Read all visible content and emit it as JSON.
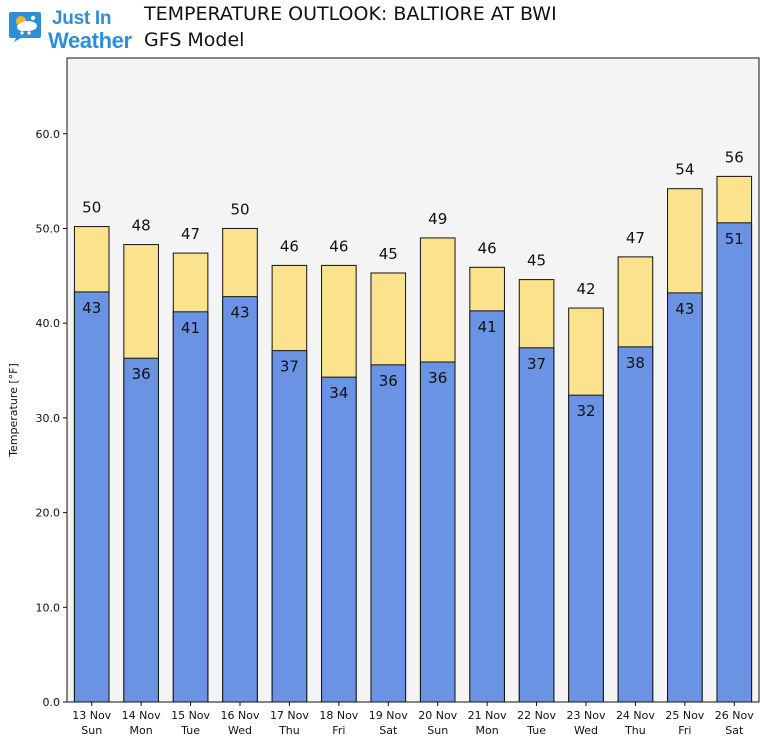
{
  "header": {
    "logo_line1": "Just In",
    "logo_line2": "Weather",
    "title": "TEMPERATURE OUTLOOK: BALTIORE AT BWI",
    "subtitle": "GFS Model"
  },
  "colors": {
    "high_bar": "#fbe38e",
    "low_bar": "#6b93e4",
    "plot_bg": "#f4f4f4",
    "logo_blue": "#2f8fd6"
  },
  "chart_data": {
    "type": "bar",
    "ylabel": "Temperature [°F]",
    "ylim": [
      0,
      68
    ],
    "yticks": [
      "0.0",
      "10.0",
      "20.0",
      "30.0",
      "40.0",
      "50.0",
      "60.0"
    ],
    "ytick_values": [
      0,
      10,
      20,
      30,
      40,
      50,
      60
    ],
    "grid": false,
    "categories": [
      [
        "13 Nov",
        "Sun"
      ],
      [
        "14 Nov",
        "Mon"
      ],
      [
        "15 Nov",
        "Tue"
      ],
      [
        "16 Nov",
        "Wed"
      ],
      [
        "17 Nov",
        "Thu"
      ],
      [
        "18 Nov",
        "Fri"
      ],
      [
        "19 Nov",
        "Sat"
      ],
      [
        "20 Nov",
        "Sun"
      ],
      [
        "21 Nov",
        "Mon"
      ],
      [
        "22 Nov",
        "Tue"
      ],
      [
        "23 Nov",
        "Wed"
      ],
      [
        "24 Nov",
        "Thu"
      ],
      [
        "25 Nov",
        "Fri"
      ],
      [
        "26 Nov",
        "Sat"
      ]
    ],
    "series": [
      {
        "values": [
          50.2,
          48.3,
          47.4,
          50.0,
          46.1,
          46.1,
          45.3,
          49.0,
          45.9,
          44.6,
          41.6,
          47.0,
          54.2,
          55.5
        ],
        "labels": [
          "50",
          "48",
          "47",
          "50",
          "46",
          "46",
          "45",
          "49",
          "46",
          "45",
          "42",
          "47",
          "54",
          "56"
        ]
      },
      {
        "values": [
          43.3,
          36.3,
          41.2,
          42.8,
          37.1,
          34.3,
          35.6,
          35.9,
          41.3,
          37.4,
          32.4,
          37.5,
          43.2,
          50.6
        ],
        "labels": [
          "43",
          "36",
          "41",
          "43",
          "37",
          "34",
          "36",
          "36",
          "41",
          "37",
          "32",
          "38",
          "43",
          "51"
        ]
      }
    ]
  }
}
